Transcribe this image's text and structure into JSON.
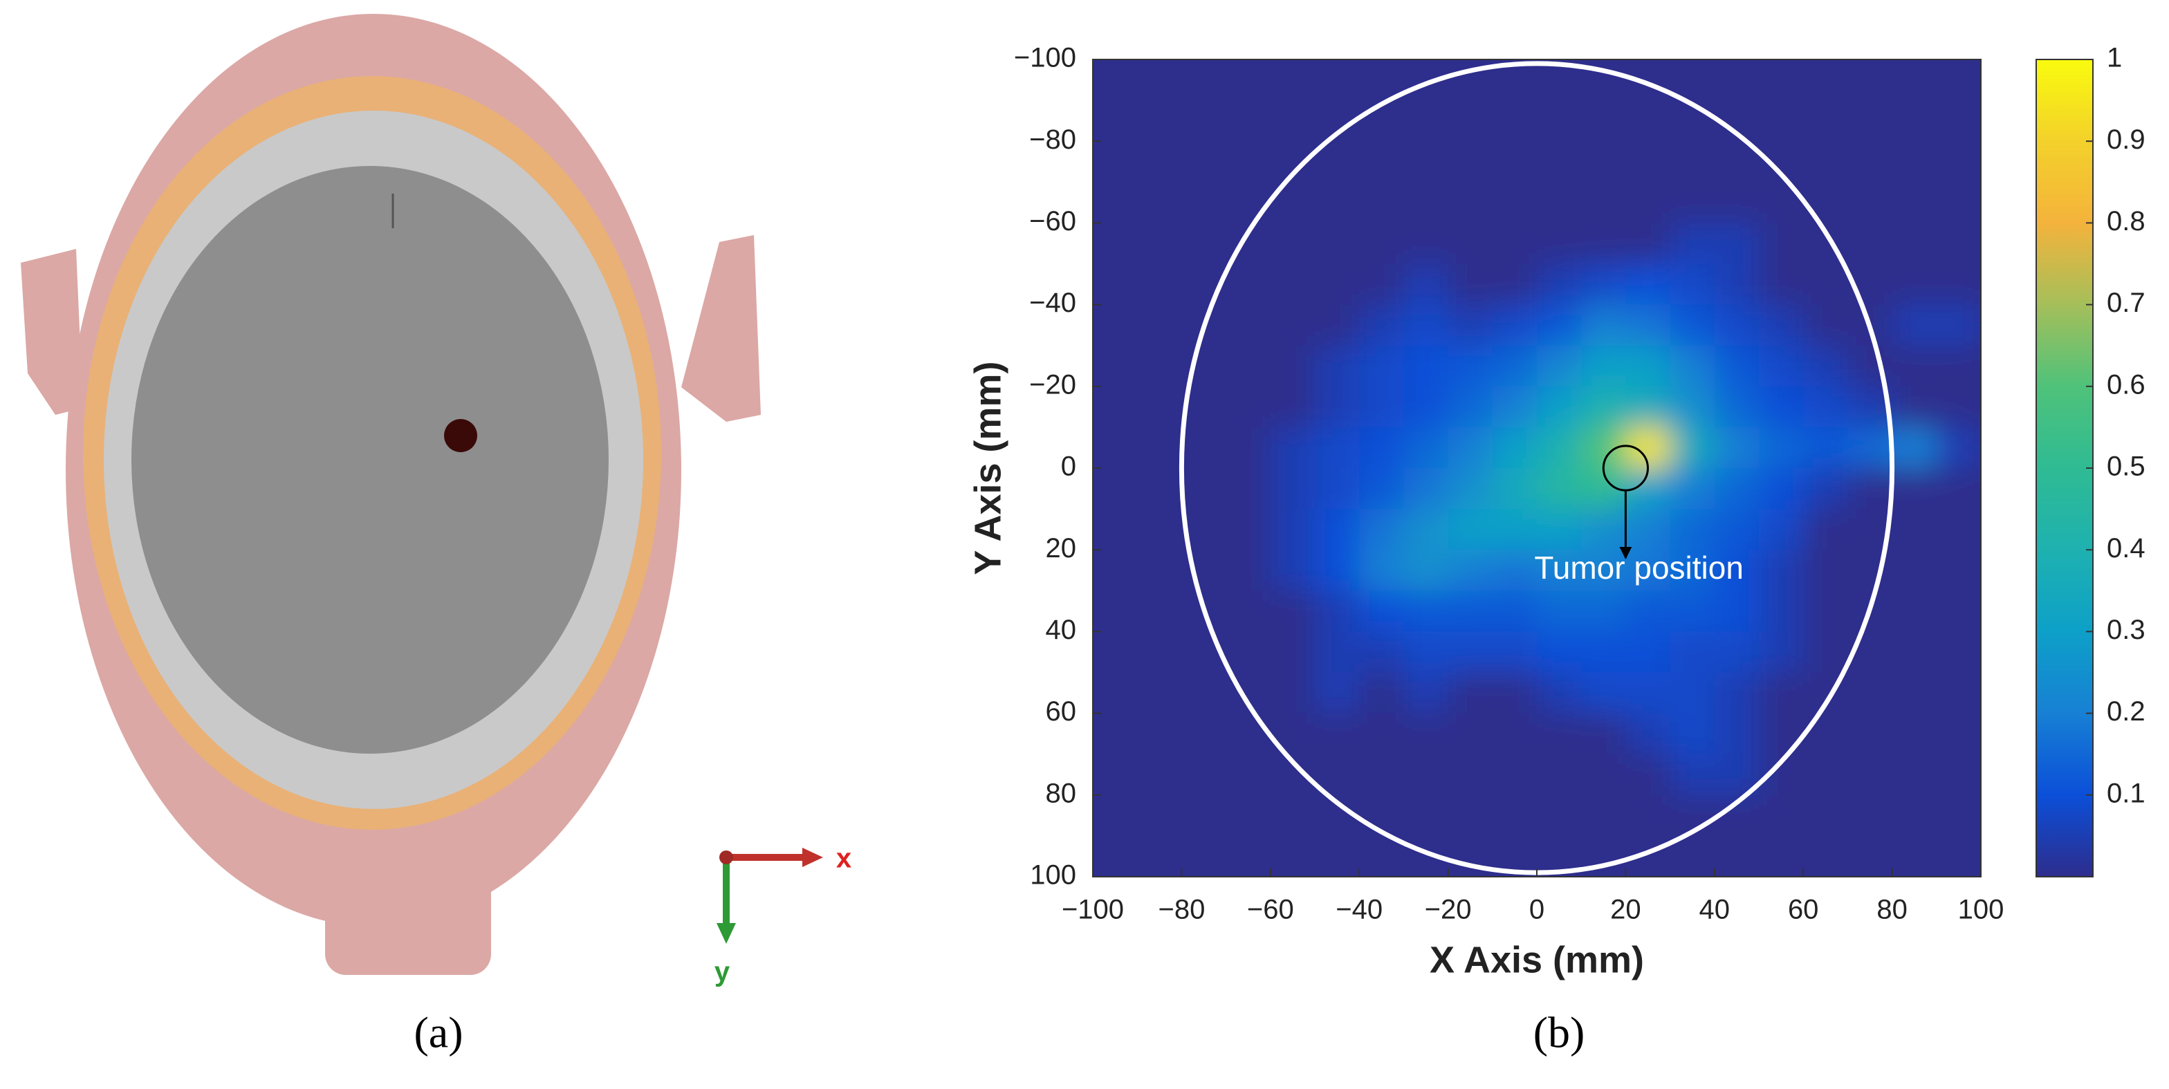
{
  "panel_a": {
    "caption": "(a)",
    "axis_labels": [
      "x",
      "y"
    ]
  },
  "chart_data": {
    "type": "heatmap",
    "caption": "(b)",
    "xlabel": "X Axis (mm)",
    "ylabel": "Y Axis (mm)",
    "xlim": [
      -100,
      100
    ],
    "ylim": [
      -100,
      100
    ],
    "yreverse": true,
    "xticks": [
      {
        "value": -100,
        "label": "−100"
      },
      {
        "value": -80,
        "label": "−80"
      },
      {
        "value": -60,
        "label": "−60"
      },
      {
        "value": -40,
        "label": "−40"
      },
      {
        "value": -20,
        "label": "−20"
      },
      0,
      20,
      40,
      60,
      80,
      100
    ],
    "yticks": [
      {
        "value": -100,
        "label": "−100"
      },
      {
        "value": -80,
        "label": "−80"
      },
      {
        "value": -60,
        "label": "−60"
      },
      {
        "value": -40,
        "label": "−40"
      },
      {
        "value": -20,
        "label": "−20"
      },
      0,
      20,
      40,
      60,
      80,
      100
    ],
    "clim": [
      0,
      1
    ],
    "cticks": [
      0.1,
      0.2,
      0.3,
      0.4,
      0.5,
      0.6,
      0.7,
      0.8,
      0.9,
      1
    ],
    "x": [
      -95,
      -85,
      -75,
      -65,
      -55,
      -45,
      -35,
      -25,
      -15,
      -5,
      5,
      15,
      25,
      35,
      45,
      55,
      65,
      75,
      85,
      95
    ],
    "y": [
      -95,
      -85,
      -75,
      -65,
      -55,
      -45,
      -35,
      -25,
      -15,
      -5,
      5,
      15,
      25,
      35,
      45,
      55,
      65,
      75,
      85,
      95
    ],
    "z": [
      [
        0,
        0,
        0,
        0,
        0,
        0,
        0,
        0,
        0,
        0,
        0,
        0,
        0,
        0,
        0,
        0,
        0,
        0,
        0,
        0
      ],
      [
        0,
        0,
        0,
        0,
        0,
        0,
        0,
        0,
        0,
        0,
        0,
        0,
        0,
        0,
        0,
        0,
        0,
        0,
        0,
        0
      ],
      [
        0,
        0,
        0,
        0,
        0,
        0,
        0,
        0,
        0,
        0,
        0,
        0,
        0,
        0,
        0,
        0,
        0,
        0,
        0,
        0
      ],
      [
        0,
        0,
        0,
        0,
        0,
        0,
        0,
        0,
        0,
        0,
        0,
        0,
        0,
        0,
        0,
        0,
        0,
        0,
        0,
        0
      ],
      [
        0,
        0,
        0,
        0,
        0,
        0,
        0,
        0,
        0,
        0,
        0,
        0,
        0,
        0.05,
        0.05,
        0,
        0,
        0,
        0,
        0
      ],
      [
        0,
        0,
        0,
        0,
        0,
        0,
        0,
        0.05,
        0,
        0,
        0.05,
        0.08,
        0.1,
        0.08,
        0.05,
        0,
        0,
        0,
        0,
        0
      ],
      [
        0,
        0,
        0,
        0,
        0,
        0,
        0.05,
        0.08,
        0.05,
        0.08,
        0.12,
        0.2,
        0.18,
        0.12,
        0.08,
        0.05,
        0,
        0,
        0.05,
        0.05
      ],
      [
        0,
        0,
        0,
        0,
        0,
        0.05,
        0.08,
        0.1,
        0.12,
        0.15,
        0.22,
        0.3,
        0.3,
        0.2,
        0.12,
        0.08,
        0.05,
        0,
        0,
        0
      ],
      [
        0,
        0,
        0,
        0,
        0,
        0.05,
        0.08,
        0.1,
        0.15,
        0.2,
        0.3,
        0.4,
        0.35,
        0.25,
        0.15,
        0.1,
        0.08,
        0.05,
        0,
        0
      ],
      [
        0,
        0,
        0,
        0,
        0.05,
        0.08,
        0.1,
        0.15,
        0.2,
        0.3,
        0.4,
        0.6,
        0.95,
        0.35,
        0.2,
        0.15,
        0.12,
        0.15,
        0.2,
        0.05
      ],
      [
        0,
        0,
        0,
        0,
        0.05,
        0.08,
        0.12,
        0.18,
        0.25,
        0.35,
        0.45,
        0.5,
        0.3,
        0.2,
        0.15,
        0.1,
        0.05,
        0,
        0,
        0
      ],
      [
        0,
        0,
        0,
        0,
        0.05,
        0.1,
        0.18,
        0.25,
        0.3,
        0.3,
        0.3,
        0.25,
        0.2,
        0.15,
        0.12,
        0.08,
        0,
        0,
        0,
        0
      ],
      [
        0,
        0,
        0,
        0,
        0.05,
        0.1,
        0.2,
        0.25,
        0.2,
        0.18,
        0.2,
        0.2,
        0.18,
        0.15,
        0.1,
        0.05,
        0,
        0,
        0,
        0
      ],
      [
        0,
        0,
        0,
        0,
        0,
        0.05,
        0.1,
        0.12,
        0.12,
        0.12,
        0.15,
        0.15,
        0.12,
        0.12,
        0.1,
        0.05,
        0,
        0,
        0,
        0
      ],
      [
        0,
        0,
        0,
        0,
        0,
        0.05,
        0.05,
        0.08,
        0.08,
        0.08,
        0.1,
        0.1,
        0.1,
        0.08,
        0.08,
        0.05,
        0,
        0,
        0,
        0
      ],
      [
        0,
        0,
        0,
        0,
        0,
        0.05,
        0,
        0.05,
        0,
        0,
        0.05,
        0.08,
        0.08,
        0.08,
        0.05,
        0,
        0,
        0,
        0,
        0
      ],
      [
        0,
        0,
        0,
        0,
        0,
        0,
        0,
        0,
        0,
        0,
        0,
        0,
        0.05,
        0.08,
        0.05,
        0,
        0,
        0,
        0,
        0
      ],
      [
        0,
        0,
        0,
        0,
        0,
        0,
        0,
        0,
        0,
        0,
        0,
        0,
        0,
        0.05,
        0.05,
        0,
        0,
        0,
        0,
        0
      ],
      [
        0,
        0,
        0,
        0,
        0,
        0,
        0,
        0,
        0,
        0,
        0,
        0,
        0,
        0,
        0,
        0,
        0,
        0,
        0,
        0
      ],
      [
        0,
        0,
        0,
        0,
        0,
        0,
        0,
        0,
        0,
        0,
        0,
        0,
        0,
        0,
        0,
        0,
        0,
        0,
        0,
        0
      ]
    ],
    "ellipse": {
      "cx": 0,
      "cy": 0,
      "rx": 80,
      "ry": 99
    },
    "marker": {
      "x": 20,
      "y": 0,
      "r": 5
    },
    "annotation": {
      "text": "Tumor position",
      "x": 23,
      "y": 25,
      "arrow_to": [
        20,
        22
      ]
    }
  }
}
